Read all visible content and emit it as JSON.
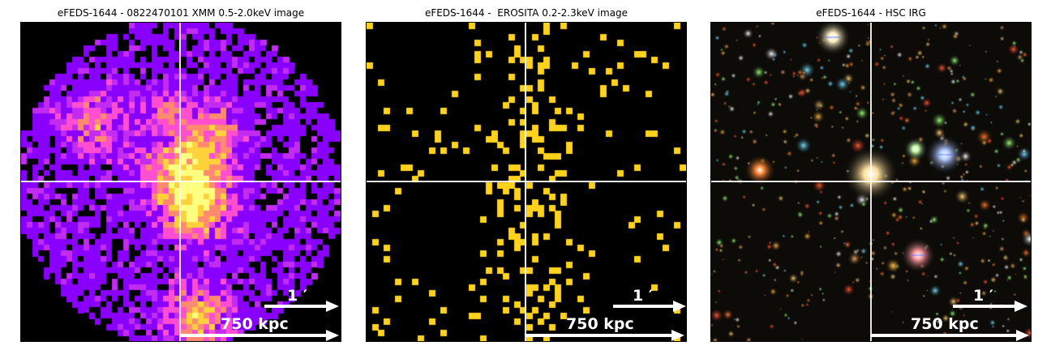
{
  "panels": [
    {
      "title": "eFEDS-1644 - 0822470101 XMM 0.5-2.0keV image",
      "kind": "xmm",
      "arcmin_label": "1 ′",
      "kpc_label": "750 kpc",
      "colors": {
        "low": "#8a00ff",
        "mid": "#ff4fd0",
        "high": "#ffd23c",
        "peak": "#ffff80"
      }
    },
    {
      "title": "eFEDS-1644 -  EROSITA 0.2-2.3keV image",
      "kind": "erosita",
      "arcmin_label": "1 ′",
      "kpc_label": "750 kpc",
      "colors": {
        "count": "#ffd21e",
        "peak": "#ffffff"
      }
    },
    {
      "title": "eFEDS-1644 - HSC IRG",
      "kind": "hsc",
      "arcmin_label": "1 ′",
      "kpc_label": "750 kpc",
      "colors": {
        "sky": "#0c0b08"
      }
    }
  ]
}
